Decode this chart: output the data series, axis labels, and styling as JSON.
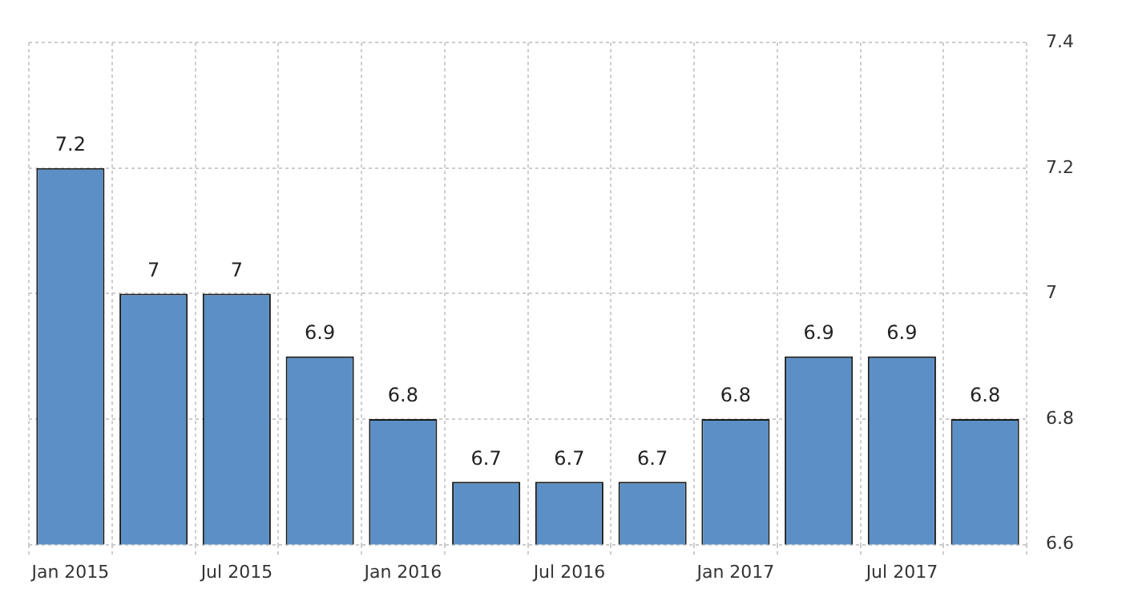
{
  "chart_data": {
    "type": "bar",
    "categories": [
      "Jan 2015",
      null,
      "Jul 2015",
      null,
      "Jan 2016",
      null,
      "Jul 2016",
      null,
      "Jan 2017",
      null,
      "Jul 2017",
      null
    ],
    "values": [
      7.2,
      7,
      7,
      6.9,
      6.8,
      6.7,
      6.7,
      6.7,
      6.8,
      6.9,
      6.9,
      6.8
    ],
    "color": "#5b8fc6",
    "ylim": [
      6.6,
      7.4
    ],
    "yticks": [
      6.6,
      6.8,
      7,
      7.2,
      7.4
    ],
    "grid": true,
    "data_labels": true,
    "legend": false
  }
}
